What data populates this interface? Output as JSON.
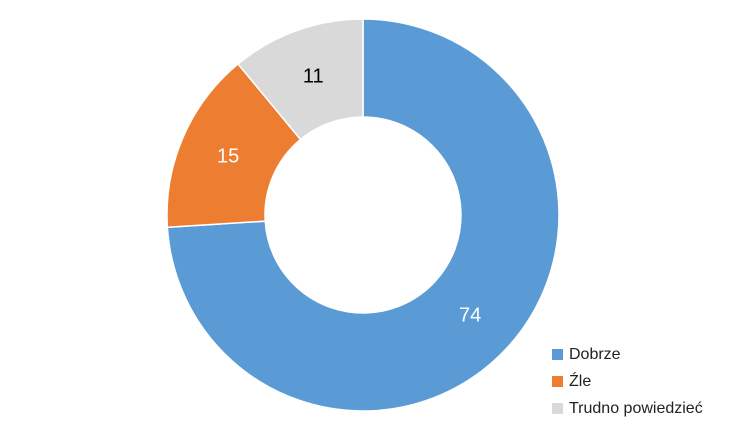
{
  "chart_data": {
    "type": "pie",
    "variant": "donut",
    "categories": [
      "Dobrze",
      "Źle",
      "Trudno powiedzieć"
    ],
    "values": [
      74,
      15,
      11
    ],
    "colors": [
      "#5b9bd5",
      "#ed7d31",
      "#d9d9d9"
    ],
    "label_colors": [
      "#ffffff",
      "#ffffff",
      "#000000"
    ],
    "legend_position": "bottom-right",
    "start_angle": "12 o'clock",
    "direction": "clockwise"
  }
}
